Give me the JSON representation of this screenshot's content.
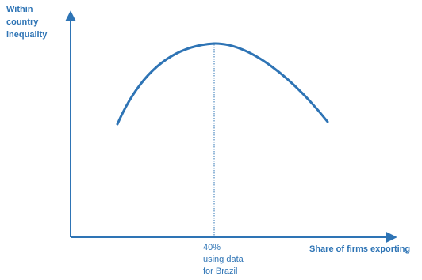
{
  "y_axis_label_lines": [
    "Within",
    "country",
    "inequality"
  ],
  "x_axis_label": "Share of firms exporting",
  "peak_note_lines": [
    "40%",
    "using data",
    "for Brazil"
  ],
  "colors": {
    "accent": "#2e74b5",
    "curve": "#2e74b5",
    "axis": "#2e74b5"
  }
}
